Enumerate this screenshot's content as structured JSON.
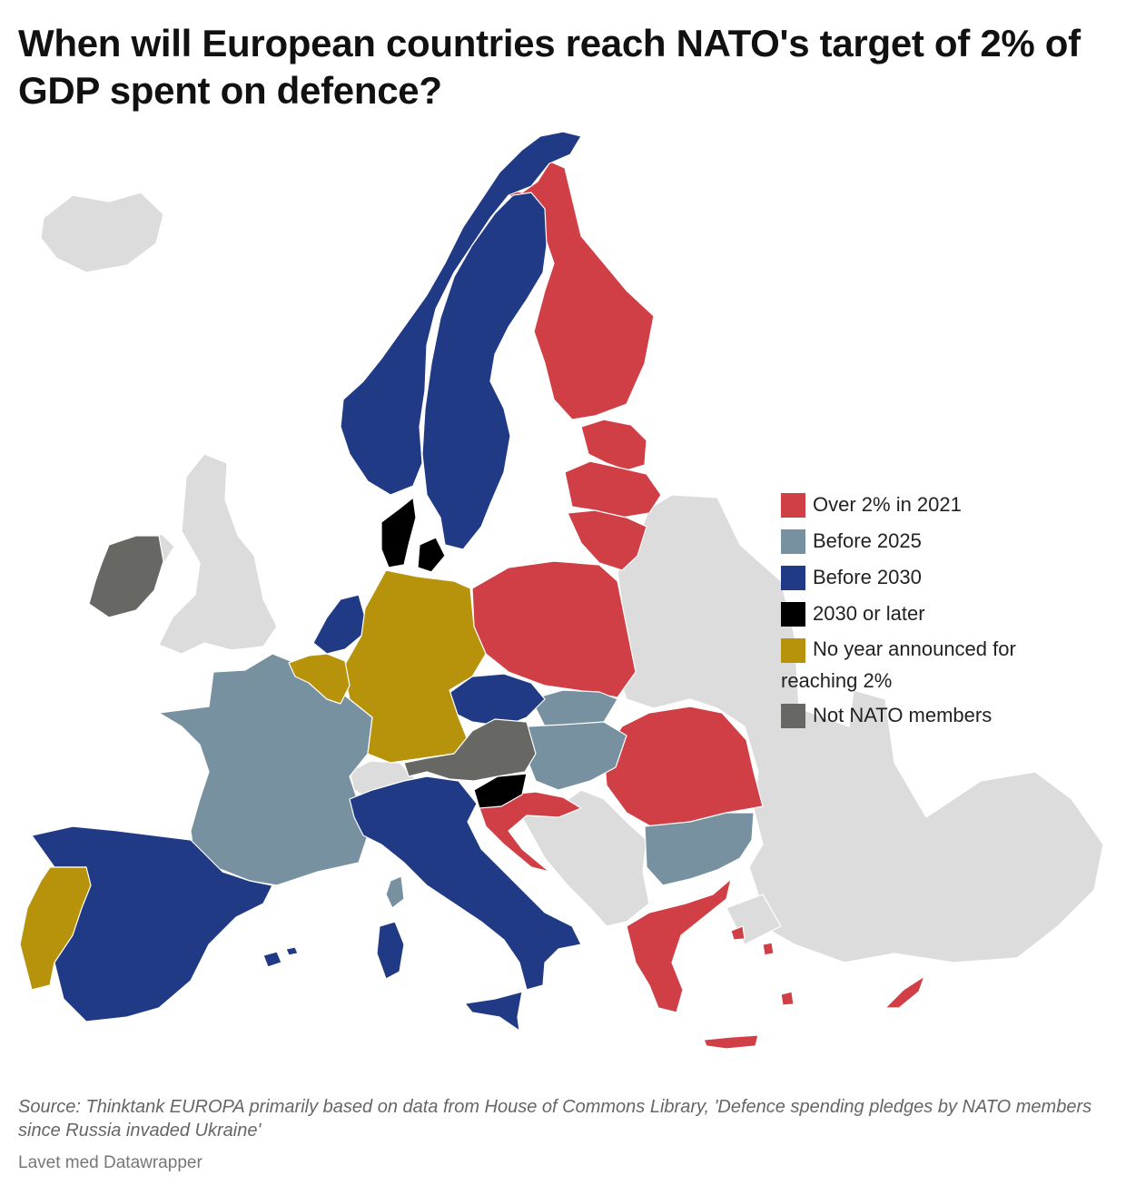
{
  "title": "When will European countries reach NATO's target of 2% of GDP spent on defence?",
  "colors": {
    "over_2_2021": "#d13f46",
    "before_2025": "#7891a0",
    "before_2030": "#213a86",
    "later_2030": "#000000",
    "no_year": "#b7930b",
    "not_nato": "#676764",
    "non_member_land": "#dcdcdc",
    "border": "#ffffff"
  },
  "legend": {
    "items": [
      {
        "label": "Over 2% in 2021",
        "color": "#d13f46"
      },
      {
        "label": "Before 2025",
        "color": "#7891a0"
      },
      {
        "label": "Before 2030",
        "color": "#213a86"
      },
      {
        "label": "2030 or later",
        "color": "#000000"
      },
      {
        "label_line1": "No year announced for",
        "label_line2": "reaching 2%",
        "color": "#b7930b"
      },
      {
        "label": "Not NATO members",
        "color": "#676764"
      }
    ]
  },
  "map_data": {
    "categories": {
      "Over 2% in 2021": [
        "Finland",
        "Estonia",
        "Latvia",
        "Lithuania",
        "Poland",
        "Romania",
        "Croatia",
        "Greece",
        "Cyprus"
      ],
      "Before 2025": [
        "France",
        "Hungary",
        "Slovakia",
        "Bulgaria"
      ],
      "Before 2030": [
        "Norway",
        "Sweden",
        "Netherlands",
        "Czechia",
        "Italy",
        "Spain"
      ],
      "2030 or later": [
        "Denmark",
        "Slovenia"
      ],
      "No year announced for reaching 2%": [
        "Germany",
        "Belgium",
        "Portugal"
      ],
      "Not NATO members": [
        "Ireland",
        "Austria"
      ]
    }
  },
  "footer": {
    "source": "Source: Thinktank EUROPA primarily based on data from House of Commons Library, 'Defence spending pledges by NATO members since Russia invaded Ukraine'",
    "credit": "Lavet med Datawrapper"
  }
}
